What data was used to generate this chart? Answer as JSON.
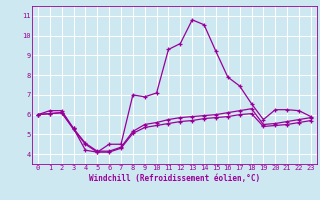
{
  "xlabel": "Windchill (Refroidissement éolien,°C)",
  "bg_color": "#cde8f0",
  "grid_color": "#ffffff",
  "line_color": "#990099",
  "xlim": [
    -0.5,
    23.5
  ],
  "ylim": [
    3.5,
    11.5
  ],
  "xticks": [
    0,
    1,
    2,
    3,
    4,
    5,
    6,
    7,
    8,
    9,
    10,
    11,
    12,
    13,
    14,
    15,
    16,
    17,
    18,
    19,
    20,
    21,
    22,
    23
  ],
  "yticks": [
    4,
    5,
    6,
    7,
    8,
    9,
    10,
    11
  ],
  "line1_x": [
    0,
    1,
    2,
    3,
    4,
    5,
    6,
    7,
    8,
    9,
    10,
    11,
    12,
    13,
    14,
    15,
    16,
    17,
    18,
    19,
    20,
    21,
    22,
    23
  ],
  "line1_y": [
    6.0,
    6.2,
    6.2,
    5.3,
    4.2,
    4.1,
    4.5,
    4.5,
    7.0,
    6.9,
    7.1,
    9.3,
    9.6,
    10.8,
    10.55,
    9.2,
    7.9,
    7.45,
    6.55,
    5.75,
    6.25,
    6.25,
    6.2,
    5.9
  ],
  "line2_x": [
    0,
    1,
    2,
    3,
    4,
    5,
    6,
    7,
    8,
    9,
    10,
    11,
    12,
    13,
    14,
    15,
    16,
    17,
    18,
    19,
    20,
    21,
    22,
    23
  ],
  "line2_y": [
    6.0,
    6.05,
    6.1,
    5.3,
    4.55,
    4.15,
    4.15,
    4.35,
    5.15,
    5.5,
    5.6,
    5.75,
    5.85,
    5.9,
    5.95,
    6.0,
    6.1,
    6.2,
    6.3,
    5.5,
    5.55,
    5.65,
    5.75,
    5.85
  ],
  "line3_x": [
    0,
    1,
    2,
    3,
    4,
    5,
    6,
    7,
    8,
    9,
    10,
    11,
    12,
    13,
    14,
    15,
    16,
    17,
    18,
    19,
    20,
    21,
    22,
    23
  ],
  "line3_y": [
    6.0,
    6.05,
    6.1,
    5.25,
    4.5,
    4.1,
    4.1,
    4.3,
    5.05,
    5.35,
    5.45,
    5.55,
    5.65,
    5.7,
    5.8,
    5.85,
    5.9,
    6.0,
    6.05,
    5.4,
    5.45,
    5.5,
    5.6,
    5.7
  ],
  "marker": "+",
  "markersize": 3,
  "linewidth": 0.9,
  "label_fontsize": 5.5,
  "tick_fontsize": 5.0
}
